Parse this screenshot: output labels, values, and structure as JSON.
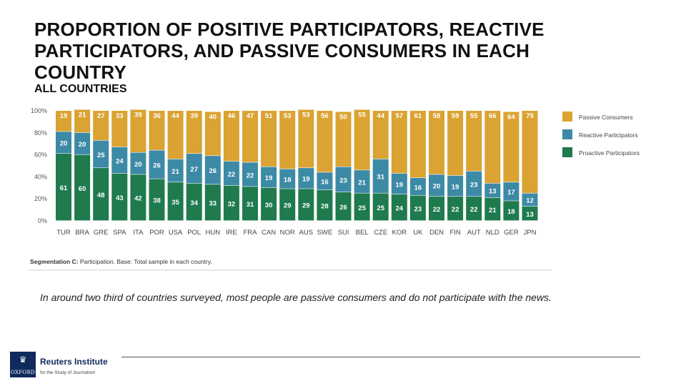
{
  "header": {
    "title": "PROPORTION OF POSITIVE PARTICIPATORS, REACTIVE PARTICIPATORS, AND PASSIVE CONSUMERS IN EACH COUNTRY",
    "subtitle": "ALL COUNTRIES"
  },
  "chart_data": {
    "type": "bar",
    "stacked": true,
    "categories": [
      "TUR",
      "BRA",
      "GRE",
      "SPA",
      "ITA",
      "POR",
      "USA",
      "POL",
      "HUN",
      "IRE",
      "FRA",
      "CAN",
      "NOR",
      "AUS",
      "SWE",
      "SUI",
      "BEL",
      "CZE",
      "KOR",
      "UK",
      "DEN",
      "FIN",
      "AUT",
      "NLD",
      "GER",
      "JPN"
    ],
    "series": [
      {
        "name": "Proactive Participators",
        "color": "#1f7a4d",
        "values": [
          61,
          60,
          48,
          43,
          42,
          38,
          35,
          34,
          33,
          32,
          31,
          30,
          29,
          29,
          28,
          26,
          25,
          25,
          24,
          23,
          22,
          22,
          22,
          21,
          18,
          13
        ]
      },
      {
        "name": "Reactive Participators",
        "color": "#3d8aa6",
        "values": [
          20,
          20,
          25,
          24,
          20,
          26,
          21,
          27,
          26,
          22,
          22,
          19,
          18,
          19,
          16,
          23,
          21,
          31,
          19,
          16,
          20,
          19,
          23,
          13,
          17,
          12
        ]
      },
      {
        "name": "Passive Consumers",
        "color": "#daa332",
        "values": [
          19,
          21,
          27,
          33,
          39,
          36,
          44,
          39,
          40,
          46,
          47,
          51,
          53,
          53,
          56,
          50,
          55,
          44,
          57,
          61,
          58,
          59,
          55,
          66,
          64,
          75
        ]
      }
    ],
    "yticks": [
      "100%",
      "80%",
      "60%",
      "40%",
      "20%",
      "0%"
    ],
    "ylim": [
      0,
      100
    ],
    "legend": "right",
    "legend_order": [
      "Passive Consumers",
      "Reactive Participators",
      "Proactive Participators"
    ],
    "grid": false,
    "footnote_label": "Segmentation C:",
    "footnote_text": " Participation. Base: Total sample in each country."
  },
  "caption": "In around two third of countries surveyed, most people are passive consumers and do not participate with the news.",
  "logo": {
    "crest_text": "OXFORD",
    "name": "Reuters Institute",
    "subname": "for the Study of Journalism"
  }
}
